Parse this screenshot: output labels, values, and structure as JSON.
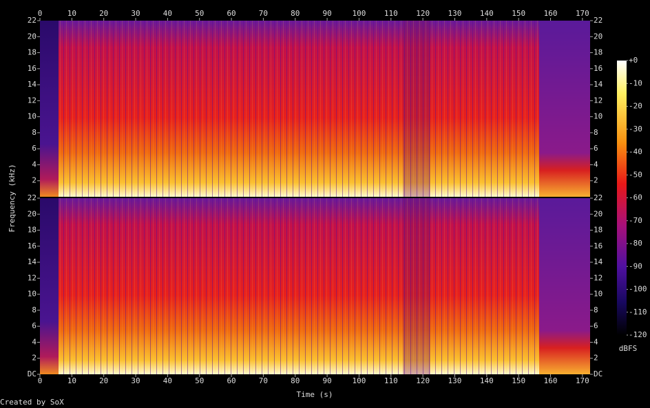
{
  "chart_data": {
    "type": "spectrogram",
    "x_label": "Time (s)",
    "y_label": "Frequency (kHz)",
    "credit": "Created by SoX",
    "xlim": [
      0,
      172.4
    ],
    "xticks": [
      0,
      10,
      20,
      30,
      40,
      50,
      60,
      70,
      80,
      90,
      100,
      110,
      120,
      130,
      140,
      150,
      160,
      170
    ],
    "panels": [
      {
        "ylim": [
          0,
          22
        ],
        "yticks": [
          2,
          4,
          6,
          8,
          10,
          12,
          14,
          16,
          18,
          20,
          22
        ]
      },
      {
        "ylim": [
          0,
          22
        ],
        "yticks": [
          {
            "value": 0,
            "label": "DC"
          },
          2,
          4,
          6,
          8,
          10,
          12,
          14,
          16,
          18,
          20,
          22
        ]
      }
    ],
    "colorbar": {
      "label": "dBFS",
      "clim": [
        -120,
        0
      ],
      "ticks": [
        {
          "value": 0,
          "label": "+0"
        },
        -10,
        -20,
        -30,
        -40,
        -50,
        -60,
        -70,
        -80,
        -90,
        -100,
        -110,
        -120
      ]
    }
  }
}
